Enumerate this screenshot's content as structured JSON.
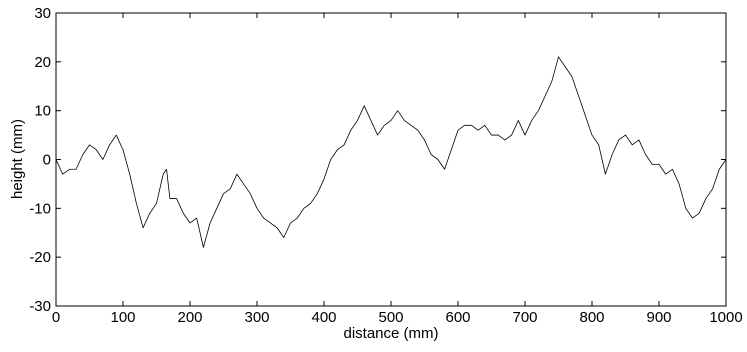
{
  "chart_data": {
    "type": "line",
    "title": "",
    "xlabel": "distance (mm)",
    "ylabel": "height (mm)",
    "xlim": [
      0,
      1000
    ],
    "ylim": [
      -30,
      30
    ],
    "xticks": [
      "0",
      "100",
      "200",
      "300",
      "400",
      "500",
      "600",
      "700",
      "800",
      "900",
      "1000"
    ],
    "yticks": [
      "30",
      "20",
      "10",
      "0",
      "-10",
      "-20",
      "-30"
    ],
    "grid": false,
    "legend": "none",
    "line_color": "#000000",
    "series": [
      {
        "x": [
          0,
          10,
          20,
          30,
          40,
          50,
          60,
          70,
          80,
          90,
          100,
          110,
          120,
          130,
          140,
          150,
          160,
          165,
          170,
          180,
          190,
          200,
          210,
          220,
          230,
          240,
          250,
          260,
          270,
          280,
          290,
          300,
          310,
          320,
          330,
          340,
          350,
          360,
          370,
          380,
          390,
          400,
          410,
          420,
          430,
          440,
          450,
          460,
          470,
          480,
          490,
          500,
          510,
          520,
          530,
          540,
          550,
          560,
          570,
          580,
          590,
          600,
          610,
          620,
          630,
          640,
          650,
          660,
          670,
          680,
          690,
          700,
          710,
          720,
          730,
          740,
          750,
          760,
          770,
          780,
          790,
          800,
          810,
          820,
          830,
          840,
          850,
          860,
          870,
          880,
          890,
          900,
          910,
          920,
          930,
          940,
          950,
          960,
          970,
          980,
          990,
          1000
        ],
        "values": [
          0,
          -3,
          -2,
          -2,
          1,
          3,
          2,
          0,
          3,
          5,
          2,
          -3,
          -9,
          -14,
          -11,
          -9,
          -3,
          -2,
          -8,
          -8,
          -11,
          -13,
          -12,
          -18,
          -13,
          -10,
          -7,
          -6,
          -3,
          -5,
          -7,
          -10,
          -12,
          -13,
          -14,
          -16,
          -13,
          -12,
          -10,
          -9,
          -7,
          -4,
          0,
          2,
          3,
          6,
          8,
          11,
          8,
          5,
          7,
          8,
          10,
          8,
          7,
          6,
          4,
          1,
          0,
          -2,
          2,
          6,
          7,
          7,
          6,
          7,
          5,
          5,
          4,
          5,
          8,
          5,
          8,
          10,
          13,
          16,
          21,
          19,
          17,
          13,
          9,
          5,
          3,
          -3,
          1,
          4,
          5,
          3,
          4,
          1,
          -1,
          -1,
          -3,
          -2,
          -5,
          -10,
          -12,
          -11,
          -8,
          -6,
          -2,
          0
        ]
      }
    ]
  }
}
